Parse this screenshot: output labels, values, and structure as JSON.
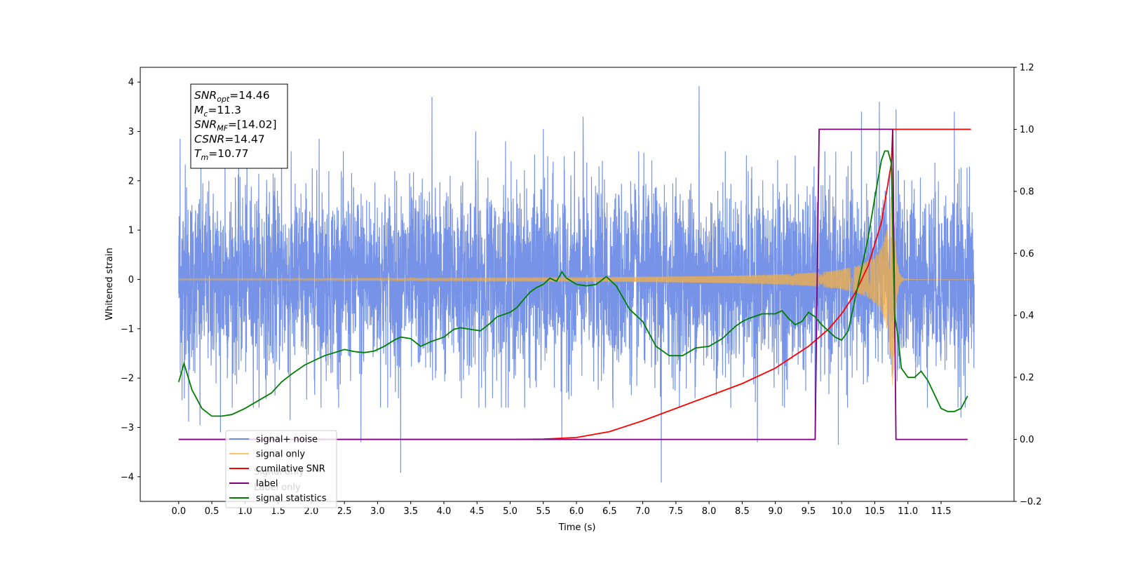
{
  "chart_data": {
    "type": "line",
    "xlabel": "Time (s)",
    "ylabel": "Whitened strain",
    "xlim": [
      -0.58,
      12.6
    ],
    "ylim": [
      -4.5,
      4.3
    ],
    "y2lim": [
      -0.2,
      1.2
    ],
    "xticks": [
      "0.0",
      "0.5",
      "1.0",
      "1.5",
      "2.0",
      "2.5",
      "3.0",
      "3.5",
      "4.0",
      "4.5",
      "5.0",
      "5.5",
      "6.0",
      "6.5",
      "7.0",
      "7.5",
      "8.0",
      "8.5",
      "9.0",
      "9.5",
      "10.0",
      "10.5",
      "11.0",
      "11.5"
    ],
    "yticks": [
      "4",
      "3",
      "2",
      "1",
      "0",
      "−1",
      "−2",
      "−3",
      "−4"
    ],
    "y2ticks": [
      "1.2",
      "1.0",
      "0.8",
      "0.6",
      "0.4",
      "0.2",
      "0.0",
      "−0.2"
    ],
    "grid": false,
    "legend_position": "lower-left",
    "info_box": [
      {
        "base": "SNR",
        "sub": "opt",
        "rest": "=14.46"
      },
      {
        "base": "M",
        "sub": "c",
        "rest": "=11.3"
      },
      {
        "base": "SNR",
        "sub": "MF",
        "rest": "=[14.02]"
      },
      {
        "base": "CSNR",
        "sub": "",
        "rest": "=14.47"
      },
      {
        "base": "T",
        "sub": "m",
        "rest": "=10.77"
      }
    ],
    "series": [
      {
        "name": "signal+ noise",
        "axis": "left",
        "color": "#6f8de6",
        "kind": "noise",
        "noise_sigma": 1.0,
        "spikes": [
          [
            0.02,
            2.85
          ],
          [
            0.05,
            -2.45
          ],
          [
            0.1,
            2.33
          ],
          [
            0.15,
            -2.88
          ],
          [
            0.32,
            -2.95
          ],
          [
            0.63,
            -3.1
          ],
          [
            0.7,
            2.85
          ],
          [
            1.55,
            2.9
          ],
          [
            1.68,
            -2.85
          ],
          [
            2.12,
            2.85
          ],
          [
            2.75,
            -3.3
          ],
          [
            3.35,
            -3.92
          ],
          [
            3.82,
            3.7
          ],
          [
            4.48,
            3.0
          ],
          [
            4.93,
            2.8
          ],
          [
            5.5,
            3.05
          ],
          [
            5.78,
            -3.25
          ],
          [
            6.1,
            3.3
          ],
          [
            7.28,
            -4.12
          ],
          [
            7.85,
            3.92
          ],
          [
            8.73,
            -3.3
          ],
          [
            9.6,
            -3.2
          ],
          [
            9.95,
            -3.35
          ],
          [
            10.3,
            3.4
          ],
          [
            10.57,
            3.6
          ],
          [
            10.82,
            3.45
          ],
          [
            11.7,
            3.4
          ],
          [
            11.8,
            -2.8
          ]
        ]
      },
      {
        "name": "signal only",
        "axis": "left",
        "color": "#f5b041",
        "kind": "chirp",
        "merger_time": 10.77,
        "peak_amplitude": 2.5
      },
      {
        "name": "cumilative SNR",
        "axis": "right",
        "color": "#ff0000",
        "x": [
          0.0,
          5.0,
          5.5,
          6.0,
          6.5,
          7.0,
          7.5,
          8.0,
          8.5,
          9.0,
          9.5,
          9.8,
          10.0,
          10.2,
          10.4,
          10.6,
          10.75,
          10.77,
          11.95
        ],
        "y": [
          0.0,
          0.0,
          0.001,
          0.006,
          0.025,
          0.06,
          0.1,
          0.14,
          0.18,
          0.23,
          0.3,
          0.355,
          0.405,
          0.47,
          0.56,
          0.7,
          0.89,
          1.0,
          1.0
        ]
      },
      {
        "name": "label",
        "axis": "right",
        "color": "#800080",
        "x": [
          0.0,
          9.6,
          9.66,
          10.77,
          10.82,
          11.9
        ],
        "y": [
          0.0,
          0.0,
          1.0,
          1.0,
          0.0,
          0.0
        ]
      },
      {
        "name": "signal statistics",
        "axis": "right",
        "color": "#008000",
        "x": [
          0.0,
          0.08,
          0.2,
          0.35,
          0.5,
          0.65,
          0.8,
          1.0,
          1.2,
          1.4,
          1.55,
          1.7,
          1.8,
          1.9,
          2.0,
          2.1,
          2.2,
          2.35,
          2.5,
          2.65,
          2.8,
          2.95,
          3.1,
          3.25,
          3.35,
          3.5,
          3.65,
          3.8,
          4.0,
          4.15,
          4.25,
          4.4,
          4.55,
          4.7,
          4.8,
          5.0,
          5.1,
          5.2,
          5.3,
          5.4,
          5.5,
          5.6,
          5.7,
          5.78,
          5.85,
          6.0,
          6.15,
          6.3,
          6.45,
          6.6,
          6.8,
          7.0,
          7.2,
          7.4,
          7.6,
          7.8,
          8.0,
          8.2,
          8.4,
          8.5,
          8.6,
          8.8,
          9.0,
          9.1,
          9.2,
          9.3,
          9.4,
          9.5,
          9.6,
          9.7,
          9.8,
          9.9,
          10.0,
          10.1,
          10.2,
          10.3,
          10.4,
          10.5,
          10.6,
          10.65,
          10.7,
          10.75,
          10.8,
          10.85,
          10.9,
          11.0,
          11.1,
          11.2,
          11.3,
          11.5,
          11.6,
          11.7,
          11.8,
          11.9
        ],
        "y": [
          0.185,
          0.245,
          0.16,
          0.1,
          0.075,
          0.075,
          0.08,
          0.1,
          0.125,
          0.15,
          0.185,
          0.21,
          0.225,
          0.24,
          0.25,
          0.26,
          0.27,
          0.28,
          0.29,
          0.283,
          0.28,
          0.285,
          0.3,
          0.32,
          0.33,
          0.325,
          0.3,
          0.315,
          0.33,
          0.355,
          0.36,
          0.355,
          0.35,
          0.375,
          0.395,
          0.41,
          0.425,
          0.45,
          0.475,
          0.49,
          0.5,
          0.52,
          0.51,
          0.54,
          0.52,
          0.5,
          0.495,
          0.5,
          0.525,
          0.495,
          0.42,
          0.38,
          0.3,
          0.27,
          0.27,
          0.295,
          0.3,
          0.325,
          0.365,
          0.38,
          0.39,
          0.405,
          0.405,
          0.415,
          0.39,
          0.37,
          0.38,
          0.41,
          0.395,
          0.37,
          0.35,
          0.33,
          0.32,
          0.35,
          0.45,
          0.55,
          0.65,
          0.78,
          0.9,
          0.93,
          0.93,
          0.89,
          0.4,
          0.33,
          0.23,
          0.2,
          0.2,
          0.22,
          0.19,
          0.1,
          0.09,
          0.09,
          0.1,
          0.14
        ]
      },
      {
        "name": "Signal only",
        "axis": "legend",
        "color": "#d3d3d3",
        "kind": "hidden_label"
      },
      {
        "name": "Label only",
        "axis": "legend",
        "color": "#d3d3d3",
        "kind": "hidden_label"
      }
    ]
  }
}
